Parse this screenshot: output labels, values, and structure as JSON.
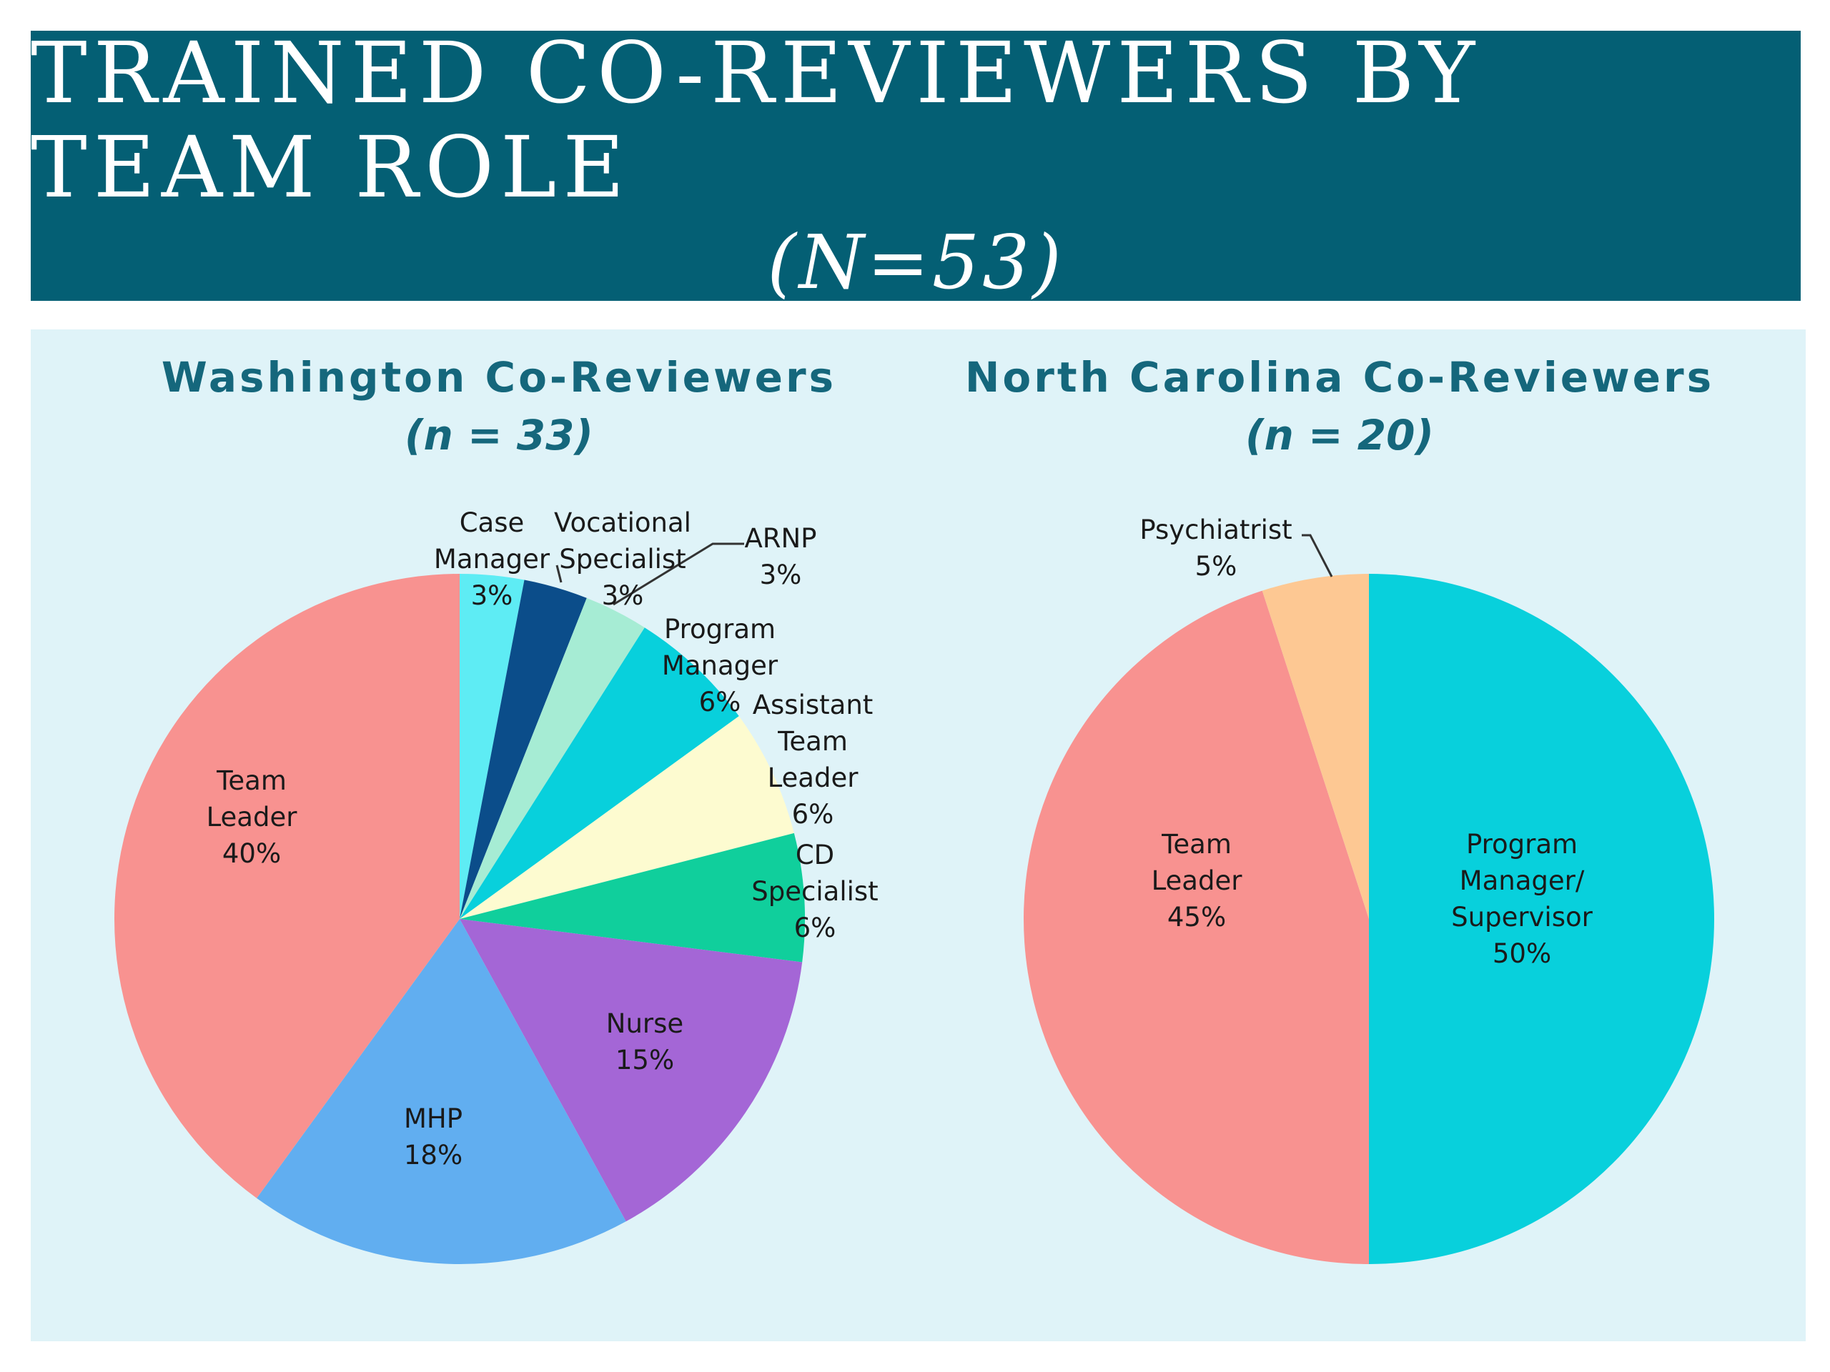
{
  "slide": {
    "title": "TRAINED CO-REVIEWERS BY TEAM ROLE",
    "subtitle": "(N=53)",
    "banner_color": "#045f74",
    "panel_color": "#dff3f8"
  },
  "chart_data": [
    {
      "type": "pie",
      "title": "Washington Co-Reviewers",
      "subtitle": "(n = 33)",
      "slices": [
        {
          "label": [
            "Case",
            "Manager"
          ],
          "value": 3,
          "value_label": "3%",
          "color": "#5eecf4"
        },
        {
          "label": [
            "Vocational",
            "Specialist"
          ],
          "value": 3,
          "value_label": "3%",
          "color": "#0b4d8a"
        },
        {
          "label": [
            "ARNP"
          ],
          "value": 3,
          "value_label": "3%",
          "color": "#a6ecd4"
        },
        {
          "label": [
            "Program",
            "Manager"
          ],
          "value": 6,
          "value_label": "6%",
          "color": "#08d0dc"
        },
        {
          "label": [
            "Assistant",
            "Team",
            "Leader"
          ],
          "value": 6,
          "value_label": "6%",
          "color": "#fdfbd0"
        },
        {
          "label": [
            "CD",
            "Specialist"
          ],
          "value": 6,
          "value_label": "6%",
          "color": "#10cf9c"
        },
        {
          "label": [
            "Nurse"
          ],
          "value": 15,
          "value_label": "15%",
          "color": "#a466d6"
        },
        {
          "label": [
            "MHP"
          ],
          "value": 18,
          "value_label": "18%",
          "color": "#61aef0"
        },
        {
          "label": [
            "Team",
            "Leader"
          ],
          "value": 40,
          "value_label": "40%",
          "color": "#f89290"
        }
      ]
    },
    {
      "type": "pie",
      "title": "North Carolina Co-Reviewers",
      "subtitle": "(n = 20)",
      "slices": [
        {
          "label": [
            "Program",
            "Manager/",
            "Supervisor"
          ],
          "value": 50,
          "value_label": "50%",
          "color": "#08d0dc"
        },
        {
          "label": [
            "Team",
            "Leader"
          ],
          "value": 45,
          "value_label": "45%",
          "color": "#f89290"
        },
        {
          "label": [
            "Psychiatrist"
          ],
          "value": 5,
          "value_label": "5%",
          "color": "#fdc893"
        }
      ]
    }
  ]
}
